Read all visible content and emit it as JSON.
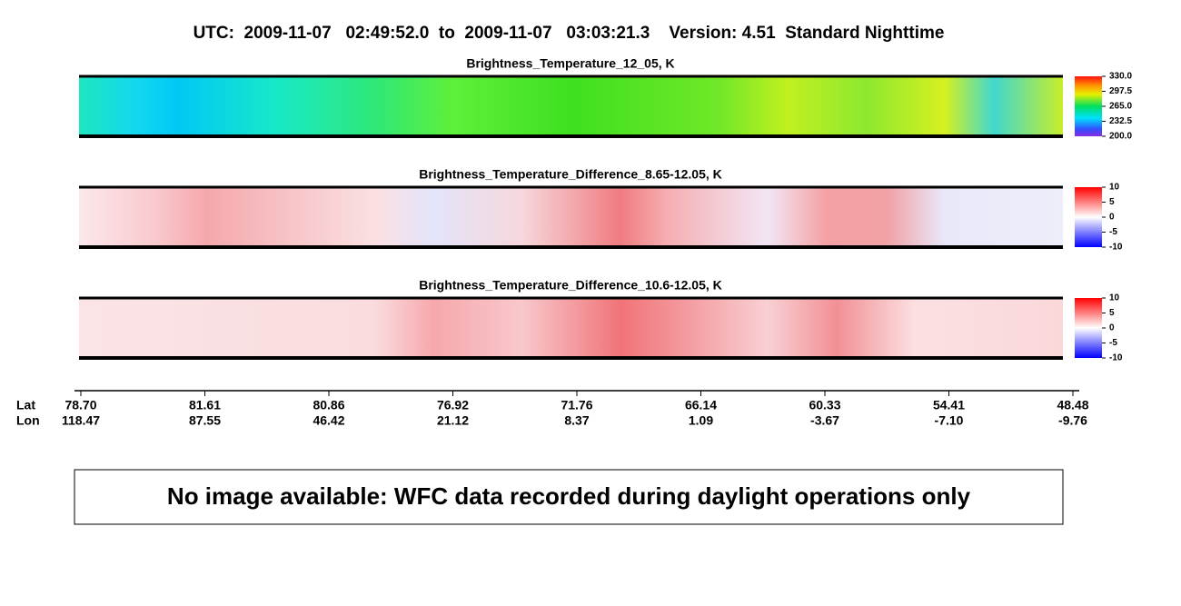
{
  "title": "UTC:  2009-11-07   02:49:52.0  to  2009-11-07   03:03:21.3    Version: 4.51  Standard Nighttime",
  "panels": [
    {
      "title": "Brightness_Temperature_12_05, K",
      "colormap": "rainbow",
      "colorbar": {
        "lim": [
          200,
          330
        ],
        "ticks": [
          {
            "value": 330,
            "label": "330.0"
          },
          {
            "value": 297.5,
            "label": "297.5"
          },
          {
            "value": 265,
            "label": "265.0"
          },
          {
            "value": 232.5,
            "label": "232.5"
          },
          {
            "value": 200,
            "label": "200.0"
          }
        ]
      }
    },
    {
      "title": "Brightness_Temperature_Difference_8.65-12.05, K",
      "colormap": "diverging",
      "colorbar": {
        "lim": [
          -10,
          10
        ],
        "ticks": [
          10,
          5,
          0,
          -5,
          -10
        ]
      }
    },
    {
      "title": "Brightness_Temperature_Difference_10.6-12.05, K",
      "colormap": "diverging",
      "colorbar": {
        "lim": [
          -10,
          10
        ],
        "ticks": [
          10,
          5,
          0,
          -5,
          -10
        ]
      }
    }
  ],
  "x_axis": {
    "row_labels": [
      "Lat",
      "Lon"
    ],
    "lat": [
      "78.70",
      "81.61",
      "80.86",
      "76.92",
      "71.76",
      "66.14",
      "60.33",
      "54.41",
      "48.48"
    ],
    "lon": [
      "118.47",
      "87.55",
      "46.42",
      "21.12",
      "8.37",
      "1.09",
      "-3.67",
      "-7.10",
      "-9.76"
    ]
  },
  "message": "No image available: WFC data recorded during daylight operations only"
}
